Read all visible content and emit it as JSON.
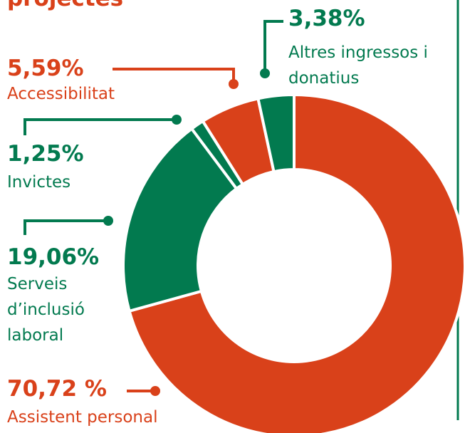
{
  "chart_data": {
    "type": "donut",
    "title": "projectes",
    "categories": [
      "Assistent personal",
      "Serveis d’inclusió laboral",
      "Invictes",
      "Accessibilitat",
      "Altres ingressos i donatius"
    ],
    "values": [
      70.72,
      19.06,
      1.25,
      5.59,
      3.38
    ],
    "value_labels": [
      "70,72 %",
      "19,06%",
      "1,25%",
      "5,59%",
      "3,38%"
    ],
    "colors": [
      "#d9411a",
      "#027a4f",
      "#027a4f",
      "#d9411a",
      "#027a4f"
    ]
  }
}
